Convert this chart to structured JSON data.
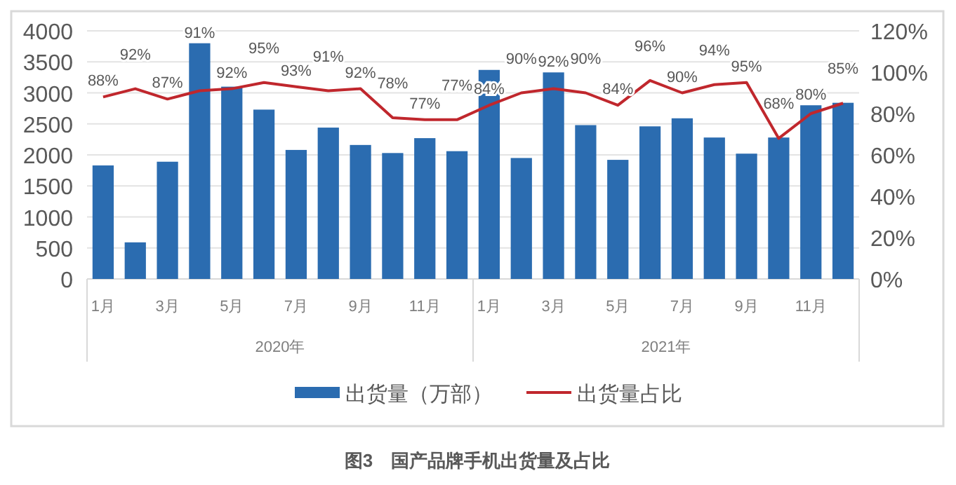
{
  "chart_data": {
    "type": "bar",
    "title": "图3　国产品牌手机出货量及占比",
    "categories": [
      "1月",
      null,
      "3月",
      null,
      "5月",
      null,
      "7月",
      null,
      "9月",
      null,
      "11月",
      null,
      "1月",
      null,
      "3月",
      null,
      "5月",
      null,
      "7月",
      null,
      "9月",
      null,
      "11月",
      null
    ],
    "annotations": [
      "2020年",
      "2021年"
    ],
    "series": [
      {
        "name": "出货量（万部）",
        "color": "#2b6cb0",
        "values": [
          1830,
          590,
          1890,
          3800,
          3100,
          2730,
          2080,
          2440,
          2160,
          2030,
          2270,
          2060,
          3370,
          1950,
          3330,
          2480,
          1920,
          2460,
          2590,
          2280,
          2020,
          2280,
          2800,
          2840
        ]
      },
      {
        "name": "出货量占比",
        "type": "line",
        "axis": "y2",
        "color": "#c0272d",
        "values": [
          88,
          92,
          87,
          91,
          92,
          95,
          93,
          91,
          92,
          78,
          77,
          77,
          84,
          90,
          92,
          90,
          84,
          96,
          90,
          94,
          95,
          68,
          80,
          85
        ],
        "value_labels": [
          "88%",
          "92%",
          "87%",
          "91%",
          "92%",
          "95%",
          "93%",
          "91%",
          "92%",
          "78%",
          "77%",
          "77%",
          "84%",
          "90%",
          "92%",
          "90%",
          "84%",
          "96%",
          "90%",
          "94%",
          "95%",
          "68%",
          "80%",
          "85%"
        ]
      }
    ],
    "ylim": [
      0,
      4000
    ],
    "yticks": [
      0,
      500,
      1000,
      1500,
      2000,
      2500,
      3000,
      3500,
      4000
    ],
    "y2lim": [
      0,
      120
    ],
    "y2ticks": [
      {
        "value": 0,
        "label": "0%"
      },
      {
        "value": 20,
        "label": "20%"
      },
      {
        "value": 40,
        "label": "40%"
      },
      {
        "value": 60,
        "label": "60%"
      },
      {
        "value": 80,
        "label": "80%"
      },
      {
        "value": 100,
        "label": "100%"
      },
      {
        "value": 120,
        "label": "120%"
      }
    ],
    "grid": "y",
    "legend": "bottom"
  }
}
